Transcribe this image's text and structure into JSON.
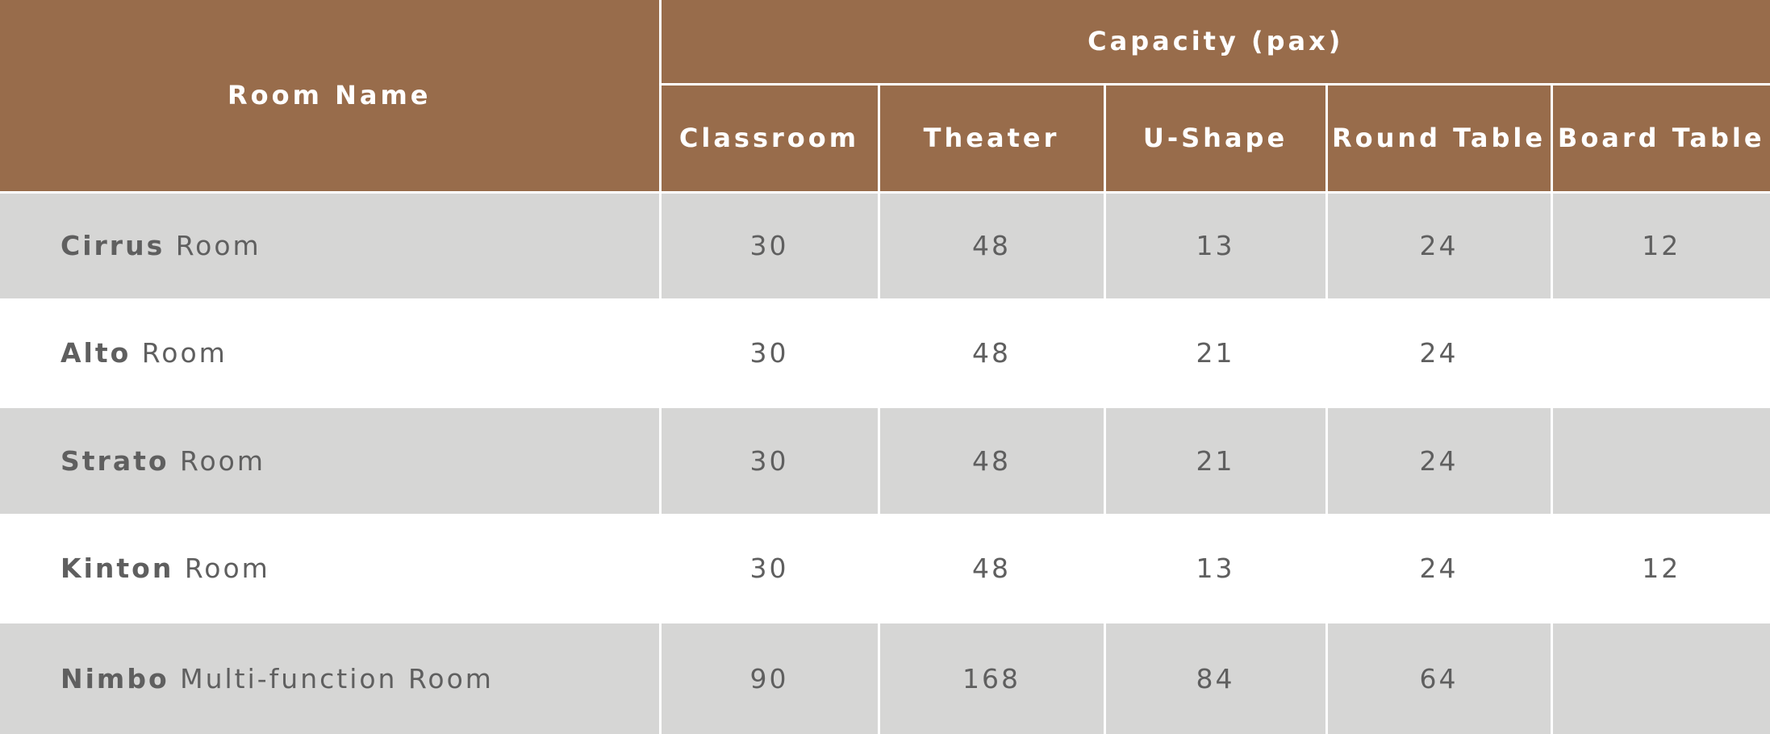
{
  "header": {
    "room_name": "Room Name",
    "capacity": "Capacity (pax)",
    "columns": [
      "Classroom",
      "Theater",
      "U-Shape",
      "Round Table",
      "Board Table"
    ]
  },
  "rows": [
    {
      "name_bold": "Cirrus",
      "name_rest": " Room",
      "values": [
        "30",
        "48",
        "13",
        "24",
        "12"
      ]
    },
    {
      "name_bold": "Alto",
      "name_rest": " Room",
      "values": [
        "30",
        "48",
        "21",
        "24",
        ""
      ]
    },
    {
      "name_bold": "Strato",
      "name_rest": " Room",
      "values": [
        "30",
        "48",
        "21",
        "24",
        ""
      ]
    },
    {
      "name_bold": "Kinton",
      "name_rest": " Room",
      "values": [
        "30",
        "48",
        "13",
        "24",
        "12"
      ]
    },
    {
      "name_bold": "Nimbo",
      "name_rest": " Multi-function Room",
      "values": [
        "90",
        "168",
        "84",
        "64",
        ""
      ]
    }
  ],
  "colors": {
    "header_bg": "#986c4b",
    "header_text": "#ffffff",
    "row_shade": "#d6d6d5",
    "row_plain": "#ffffff",
    "body_text": "#5f5f5f"
  }
}
